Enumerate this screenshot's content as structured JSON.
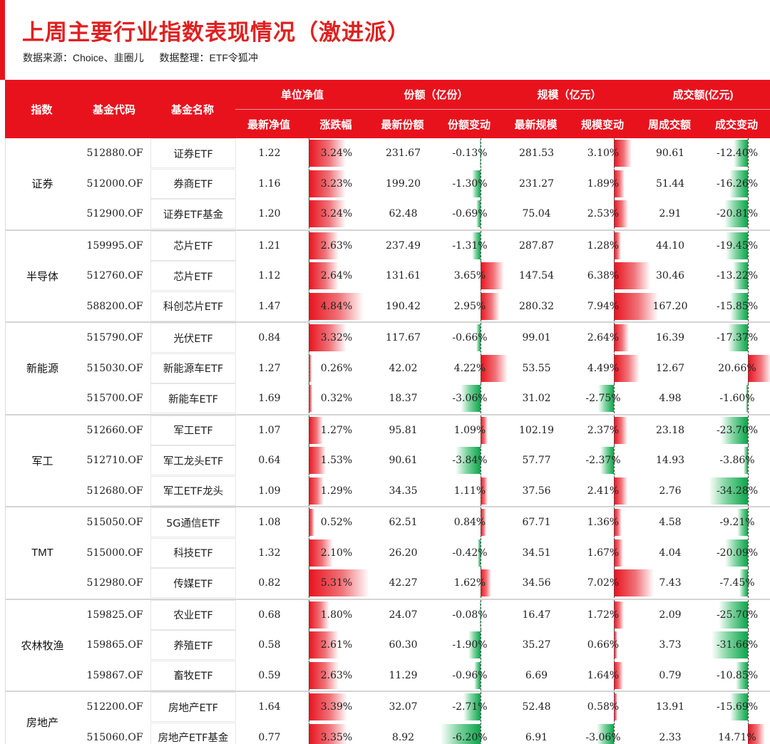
{
  "title": "上周主要行业指数表现情况（激进派）",
  "source": "数据来源：Choice、韭圈儿",
  "compiler": "数据整理：ETF令狐冲",
  "colors": {
    "accent": "#e8121d",
    "positive": "#e8121d",
    "negative": "#0aa54a"
  },
  "header": {
    "index": "指数",
    "code": "基金代码",
    "name": "基金名称",
    "nav_group": "单位净值",
    "share_group": "份额（亿份）",
    "scale_group": "规模（亿元）",
    "turnover_group": "成交额(亿元)",
    "latest_nav": "最新净值",
    "change": "涨跌幅",
    "latest_share": "最新份额",
    "share_change": "份额变动",
    "latest_scale": "最新规模",
    "scale_change": "规模变动",
    "weekly_turnover": "周成交额",
    "turnover_change": "成交变动"
  },
  "groups": [
    {
      "label": "证券",
      "rows": [
        {
          "code": "512880.OF",
          "name": "证券ETF",
          "nav": "1.22",
          "change": "3.24%",
          "share": "231.67",
          "share_chg": "-0.13%",
          "scale": "281.53",
          "scale_chg": "3.10%",
          "turnover": "90.61",
          "turn_chg": "-12.40%"
        },
        {
          "code": "512000.OF",
          "name": "券商ETF",
          "nav": "1.16",
          "change": "3.23%",
          "share": "199.20",
          "share_chg": "-1.30%",
          "scale": "231.27",
          "scale_chg": "1.89%",
          "turnover": "51.44",
          "turn_chg": "-16.26%"
        },
        {
          "code": "512900.OF",
          "name": "证券ETF基金",
          "nav": "1.20",
          "change": "3.24%",
          "share": "62.48",
          "share_chg": "-0.69%",
          "scale": "75.04",
          "scale_chg": "2.53%",
          "turnover": "2.91",
          "turn_chg": "-20.81%"
        }
      ]
    },
    {
      "label": "半导体",
      "rows": [
        {
          "code": "159995.OF",
          "name": "芯片ETF",
          "nav": "1.21",
          "change": "2.63%",
          "share": "237.49",
          "share_chg": "-1.31%",
          "scale": "287.87",
          "scale_chg": "1.28%",
          "turnover": "44.10",
          "turn_chg": "-19.45%"
        },
        {
          "code": "512760.OF",
          "name": "芯片ETF",
          "nav": "1.12",
          "change": "2.64%",
          "share": "131.61",
          "share_chg": "3.65%",
          "scale": "147.54",
          "scale_chg": "6.38%",
          "turnover": "30.46",
          "turn_chg": "-13.22%"
        },
        {
          "code": "588200.OF",
          "name": "科创芯片ETF",
          "nav": "1.47",
          "change": "4.84%",
          "share": "190.42",
          "share_chg": "2.95%",
          "scale": "280.32",
          "scale_chg": "7.94%",
          "turnover": "167.20",
          "turn_chg": "-15.85%"
        }
      ]
    },
    {
      "label": "新能源",
      "rows": [
        {
          "code": "515790.OF",
          "name": "光伏ETF",
          "nav": "0.84",
          "change": "3.32%",
          "share": "117.67",
          "share_chg": "-0.66%",
          "scale": "99.01",
          "scale_chg": "2.64%",
          "turnover": "16.39",
          "turn_chg": "-17.37%"
        },
        {
          "code": "515030.OF",
          "name": "新能源车ETF",
          "nav": "1.27",
          "change": "0.26%",
          "share": "42.02",
          "share_chg": "4.22%",
          "scale": "53.55",
          "scale_chg": "4.49%",
          "turnover": "12.67",
          "turn_chg": "20.66%"
        },
        {
          "code": "515700.OF",
          "name": "新能车ETF",
          "nav": "1.69",
          "change": "0.32%",
          "share": "18.37",
          "share_chg": "-3.06%",
          "scale": "31.02",
          "scale_chg": "-2.75%",
          "turnover": "4.98",
          "turn_chg": "-1.60%"
        }
      ]
    },
    {
      "label": "军工",
      "rows": [
        {
          "code": "512660.OF",
          "name": "军工ETF",
          "nav": "1.07",
          "change": "1.27%",
          "share": "95.81",
          "share_chg": "1.09%",
          "scale": "102.19",
          "scale_chg": "2.37%",
          "turnover": "23.18",
          "turn_chg": "-23.70%"
        },
        {
          "code": "512710.OF",
          "name": "军工龙头ETF",
          "nav": "0.64",
          "change": "1.53%",
          "share": "90.61",
          "share_chg": "-3.84%",
          "scale": "57.77",
          "scale_chg": "-2.37%",
          "turnover": "14.93",
          "turn_chg": "-3.86%"
        },
        {
          "code": "512680.OF",
          "name": "军工ETF龙头",
          "nav": "1.09",
          "change": "1.29%",
          "share": "34.35",
          "share_chg": "1.11%",
          "scale": "37.56",
          "scale_chg": "2.41%",
          "turnover": "2.76",
          "turn_chg": "-34.28%"
        }
      ]
    },
    {
      "label": "TMT",
      "rows": [
        {
          "code": "515050.OF",
          "name": "5G通信ETF",
          "nav": "1.08",
          "change": "0.52%",
          "share": "62.51",
          "share_chg": "0.84%",
          "scale": "67.71",
          "scale_chg": "1.36%",
          "turnover": "4.58",
          "turn_chg": "-9.21%"
        },
        {
          "code": "515000.OF",
          "name": "科技ETF",
          "nav": "1.32",
          "change": "2.10%",
          "share": "26.20",
          "share_chg": "-0.42%",
          "scale": "34.51",
          "scale_chg": "1.67%",
          "turnover": "4.04",
          "turn_chg": "-20.09%"
        },
        {
          "code": "512980.OF",
          "name": "传媒ETF",
          "nav": "0.82",
          "change": "5.31%",
          "share": "42.27",
          "share_chg": "1.62%",
          "scale": "34.56",
          "scale_chg": "7.02%",
          "turnover": "7.43",
          "turn_chg": "-7.45%"
        }
      ]
    },
    {
      "label": "农林牧渔",
      "rows": [
        {
          "code": "159825.OF",
          "name": "农业ETF",
          "nav": "0.68",
          "change": "1.80%",
          "share": "24.07",
          "share_chg": "-0.08%",
          "scale": "16.47",
          "scale_chg": "1.72%",
          "turnover": "2.09",
          "turn_chg": "-25.70%"
        },
        {
          "code": "159865.OF",
          "name": "养殖ETF",
          "nav": "0.58",
          "change": "2.61%",
          "share": "60.30",
          "share_chg": "-1.90%",
          "scale": "35.27",
          "scale_chg": "0.66%",
          "turnover": "3.73",
          "turn_chg": "-31.66%"
        },
        {
          "code": "159867.OF",
          "name": "畜牧ETF",
          "nav": "0.59",
          "change": "2.63%",
          "share": "11.29",
          "share_chg": "-0.96%",
          "scale": "6.69",
          "scale_chg": "1.64%",
          "turnover": "0.79",
          "turn_chg": "-10.85%"
        }
      ]
    },
    {
      "label": "房地产",
      "rows": [
        {
          "code": "512200.OF",
          "name": "房地产ETF",
          "nav": "1.64",
          "change": "3.39%",
          "share": "32.07",
          "share_chg": "-2.71%",
          "scale": "52.48",
          "scale_chg": "0.58%",
          "turnover": "13.91",
          "turn_chg": "-15.69%"
        },
        {
          "code": "515060.OF",
          "name": "房地产ETF基金",
          "nav": "0.77",
          "change": "3.35%",
          "share": "8.92",
          "share_chg": "-6.20%",
          "scale": "6.91",
          "scale_chg": "-3.06%",
          "turnover": "2.33",
          "turn_chg": "14.71%"
        }
      ]
    }
  ]
}
